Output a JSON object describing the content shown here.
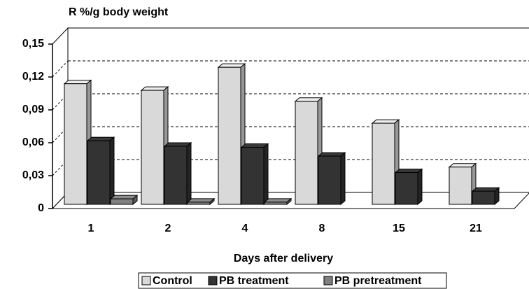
{
  "chart_data": {
    "type": "bar",
    "title": "R %/g body weight",
    "x_label": "Days after delivery",
    "categories": [
      "1",
      "2",
      "4",
      "8",
      "15",
      "21"
    ],
    "series": [
      {
        "name": "Control",
        "color": "#d9d9d9",
        "values": [
          0.11,
          0.104,
          0.125,
          0.094,
          0.074,
          0.034
        ]
      },
      {
        "name": "PB treatment",
        "color": "#333333",
        "values": [
          0.058,
          0.053,
          0.052,
          0.044,
          0.029,
          0.012
        ]
      },
      {
        "name": "PB pretreatment",
        "color": "#808080",
        "values": [
          0.005,
          0.002,
          0.002,
          null,
          null,
          null
        ]
      }
    ],
    "ylim": [
      0,
      0.15
    ],
    "yticks": [
      0,
      {
        "value": 0.03,
        "label": "0,03"
      },
      {
        "value": 0.06,
        "label": "0,06"
      },
      {
        "value": 0.09,
        "label": "0,09"
      },
      {
        "value": 0.12,
        "label": "0,12"
      },
      {
        "value": 0.15,
        "label": "0,15"
      }
    ],
    "grid": true
  }
}
